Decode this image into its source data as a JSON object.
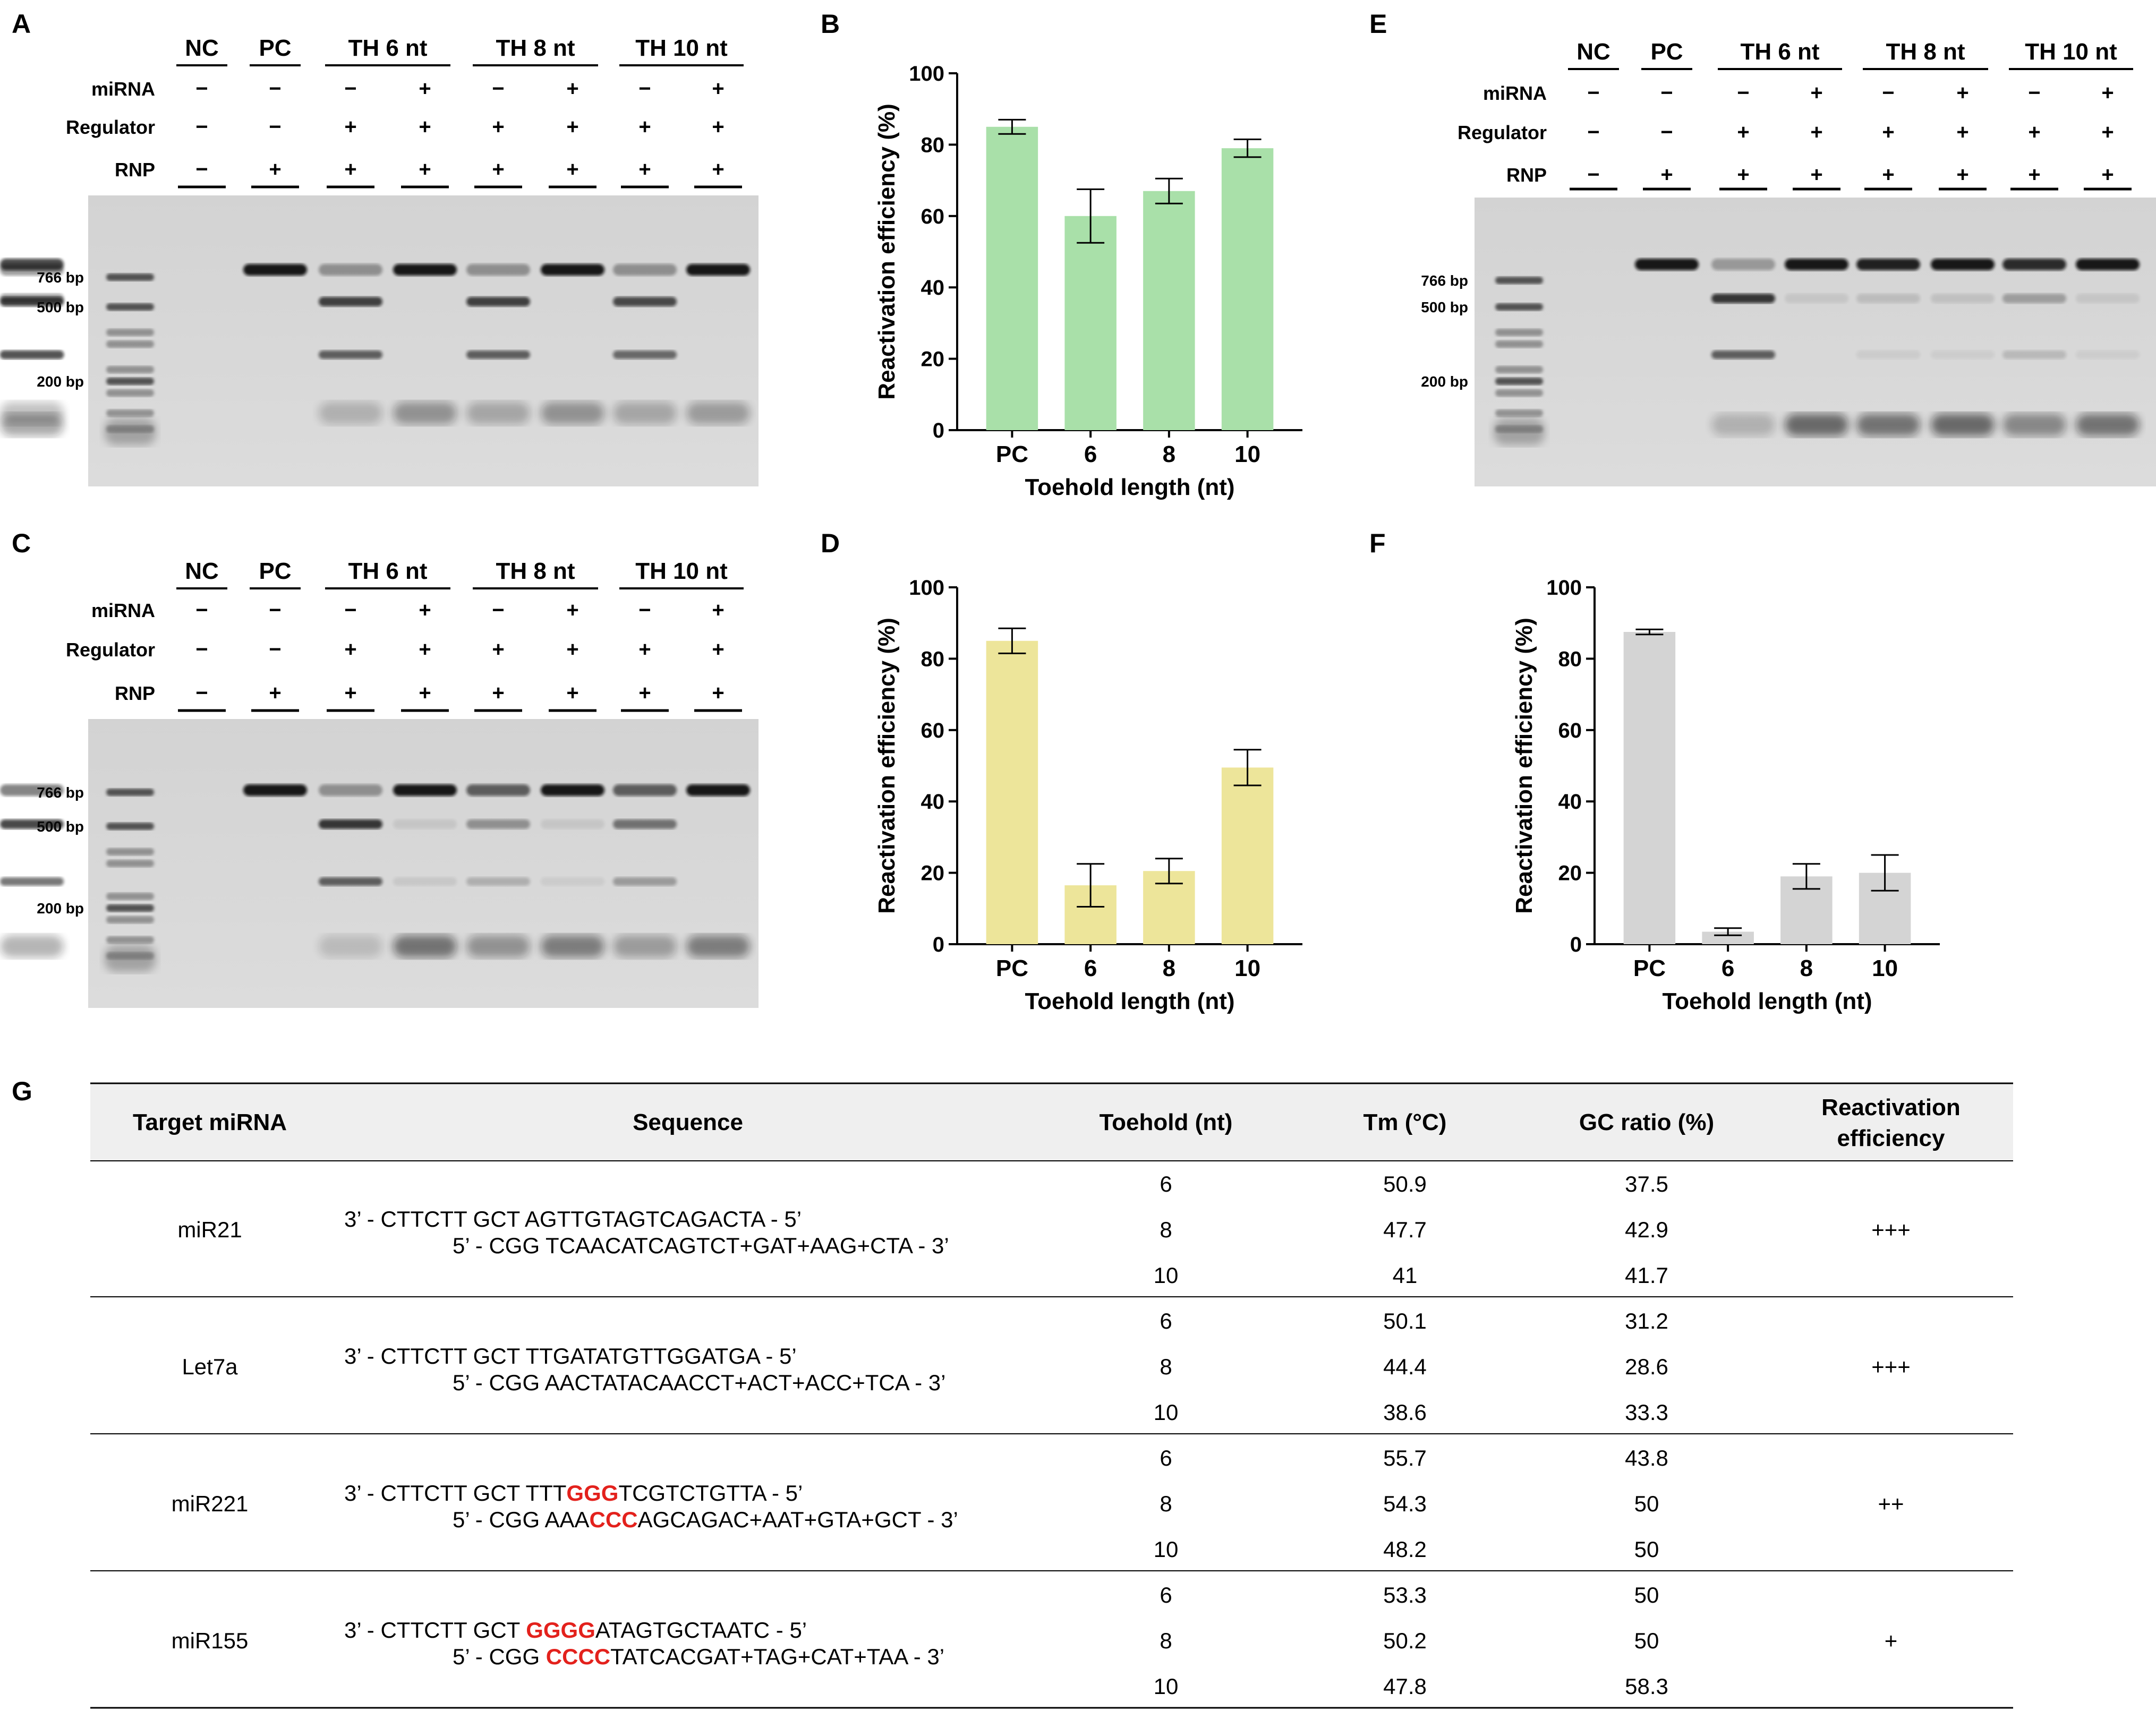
{
  "panel_labels": [
    "A",
    "B",
    "C",
    "D",
    "E",
    "F",
    "G"
  ],
  "gel": {
    "groups": [
      "NC",
      "PC",
      "TH 6 nt",
      "TH 8 nt",
      "TH 10 nt"
    ],
    "row_labels": [
      "miRNA",
      "Regulator",
      "RNP"
    ],
    "rows": {
      "miRNA": [
        "−",
        "−",
        "−",
        "+",
        "−",
        "+",
        "−",
        "+"
      ],
      "Regulator": [
        "−",
        "−",
        "+",
        "+",
        "+",
        "+",
        "+",
        "+"
      ],
      "RNP": [
        "−",
        "+",
        "+",
        "+",
        "+",
        "+",
        "+",
        "+"
      ]
    },
    "markers": [
      "766 bp",
      "500 bp",
      "200 bp"
    ]
  },
  "chart_data": [
    {
      "panel": "B",
      "type": "bar",
      "categories": [
        "PC",
        "6",
        "8",
        "10"
      ],
      "values": [
        85,
        60,
        67,
        79
      ],
      "errors": [
        2,
        7.5,
        3.5,
        2.5
      ],
      "xlabel": "Toehold length  (nt)",
      "ylabel": "Reactivation efficiency (%)",
      "ylim": [
        0,
        100
      ],
      "yticks": [
        "0",
        "20",
        "40",
        "60",
        "80",
        "100"
      ],
      "color": "#a9e0a9"
    },
    {
      "panel": "D",
      "type": "bar",
      "categories": [
        "PC",
        "6",
        "8",
        "10"
      ],
      "values": [
        85,
        16.5,
        20.5,
        49.5
      ],
      "errors": [
        3.5,
        6,
        3.5,
        5
      ],
      "xlabel": "Toehold length  (nt)",
      "ylabel": "Reactivation efficiency (%)",
      "ylim": [
        0,
        100
      ],
      "yticks": [
        "0",
        "20",
        "40",
        "60",
        "80",
        "100"
      ],
      "color": "#ede59a"
    },
    {
      "panel": "F",
      "type": "bar",
      "categories": [
        "PC",
        "6",
        "8",
        "10"
      ],
      "values": [
        87.5,
        3.5,
        19,
        20
      ],
      "errors": [
        0.7,
        1,
        3.5,
        5
      ],
      "xlabel": "Toehold length  (nt)",
      "ylabel": "Reactivation efficiency (%)",
      "ylim": [
        0,
        100
      ],
      "yticks": [
        "0",
        "20",
        "40",
        "60",
        "80",
        "100"
      ],
      "color": "#d4d4d4"
    }
  ],
  "table": {
    "headers": [
      "Target miRNA",
      "Sequence",
      "Toehold (nt)",
      "Tm (°C)",
      "GC ratio (%)",
      "Reactivation",
      "efficiency"
    ],
    "groups": [
      {
        "name": "miR21",
        "seq1": "3’ - CTTCTT GCT AGTTGTAGTCAGACTA - 5’",
        "seq2": "5’ - CGG TCAACATCAGTCT+GAT+AAG+CTA - 3’",
        "rows": [
          [
            "6",
            "50.9",
            "37.5"
          ],
          [
            "8",
            "47.7",
            "42.9"
          ],
          [
            "10",
            "41",
            "41.7"
          ]
        ],
        "eff": "+++"
      },
      {
        "name": "Let7a",
        "seq1": "3’ - CTTCTT GCT TTGATATGTTGGATGA - 5’",
        "seq2": "5’ - CGG AACTATACAACCT+ACT+ACC+TCA - 3’",
        "rows": [
          [
            "6",
            "50.1",
            "31.2"
          ],
          [
            "8",
            "44.4",
            "28.6"
          ],
          [
            "10",
            "38.6",
            "33.3"
          ]
        ],
        "eff": "+++"
      },
      {
        "name": "miR221",
        "seq1a": "3’ - CTTCTT GCT TTT",
        "seq1r": "GGG",
        "seq1b": "TCGTCTGTTA - 5’",
        "seq2a": "5’ - CGG AAA",
        "seq2r": "CCC",
        "seq2b": "AGCAGAC+AAT+GTA+GCT - 3’",
        "rows": [
          [
            "6",
            "55.7",
            "43.8"
          ],
          [
            "8",
            "54.3",
            "50"
          ],
          [
            "10",
            "48.2",
            "50"
          ]
        ],
        "eff": "++"
      },
      {
        "name": "miR155",
        "seq1a": "3’ - CTTCTT GCT ",
        "seq1r": "GGGG",
        "seq1b": "ATAGTGCTAATC - 5’",
        "seq2a": "5’ - CGG ",
        "seq2r": "CCCC",
        "seq2b": "TATCACGAT+TAG+CAT+TAA - 3’",
        "rows": [
          [
            "6",
            "53.3",
            "50"
          ],
          [
            "8",
            "50.2",
            "50"
          ],
          [
            "10",
            "47.8",
            "58.3"
          ]
        ],
        "eff": "+"
      }
    ]
  }
}
